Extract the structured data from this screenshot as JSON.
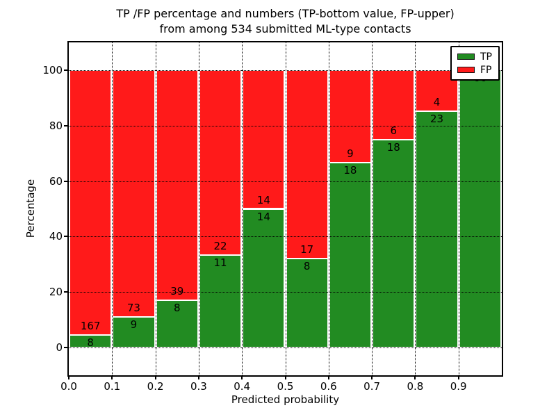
{
  "title": {
    "line1": "TP /FP percentage and numbers (TP-bottom value, FP-upper)",
    "line2": "from among 534 submitted ML-type contacts"
  },
  "axes": {
    "xlabel": "Predicted probability",
    "ylabel": "Percentage"
  },
  "legend": [
    {
      "label": "TP",
      "color": "#228B22"
    },
    {
      "label": "FP",
      "color": "#FF1A1A"
    }
  ],
  "colors": {
    "tp": "#228B22",
    "fp": "#FF1A1A",
    "grid": "#000000",
    "frame": "#000000",
    "background": "#FFFFFF",
    "bar_edge": "#FFFFFF"
  },
  "chart_data": {
    "type": "bar",
    "subtype": "stacked-percentage-histogram",
    "title": "TP /FP percentage and numbers (TP-bottom value, FP-upper)\nfrom among 534 submitted ML-type contacts",
    "xlabel": "Predicted probability",
    "ylabel": "Percentage",
    "total_contacts": 534,
    "bin_edges": [
      0.0,
      0.1,
      0.2,
      0.3,
      0.4,
      0.5,
      0.6,
      0.7,
      0.8,
      0.9,
      1.0
    ],
    "x_tick_labels": [
      "0.0",
      "0.1",
      "0.2",
      "0.3",
      "0.4",
      "0.5",
      "0.6",
      "0.7",
      "0.8",
      "0.9"
    ],
    "y_ticks": [
      0,
      20,
      40,
      60,
      80,
      100
    ],
    "xlim": [
      0.0,
      1.0
    ],
    "ylim": [
      -10,
      110
    ],
    "grid": "dotted",
    "legend_position": "upper right",
    "series": [
      {
        "name": "TP",
        "color": "#228B22",
        "counts": [
          8,
          9,
          8,
          11,
          14,
          8,
          18,
          18,
          23,
          66
        ]
      },
      {
        "name": "FP",
        "color": "#FF1A1A",
        "counts": [
          167,
          73,
          39,
          22,
          14,
          17,
          9,
          6,
          4,
          0
        ]
      }
    ],
    "tp_percent_per_bin": [
      4.57,
      10.98,
      17.02,
      33.33,
      50.0,
      32.0,
      66.67,
      75.0,
      85.19,
      100.0
    ]
  }
}
